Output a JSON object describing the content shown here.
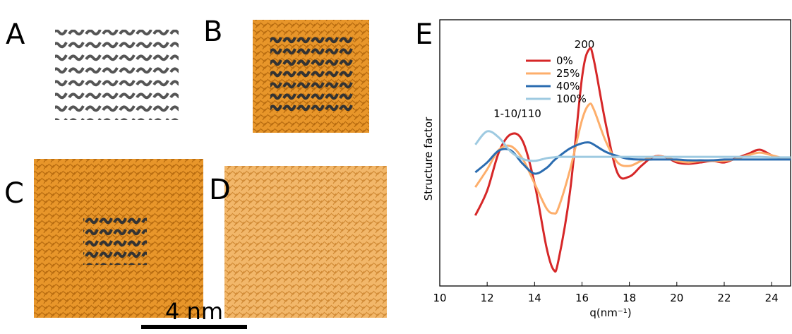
{
  "panels": {
    "labels": [
      "A",
      "B",
      "C",
      "D",
      "E"
    ],
    "scale_bar": "4 nm"
  },
  "chart_data": {
    "type": "line",
    "x_label": "q(nm⁻¹)",
    "y_label": "Structure factor",
    "annotations": [
      "200",
      "1-10/110"
    ],
    "x": [
      11.5,
      12,
      12.5,
      13,
      13.5,
      14,
      14.5,
      14.8,
      15,
      15.5,
      16,
      16.3,
      16.5,
      17,
      17.5,
      18,
      18.5,
      19,
      19.5,
      20,
      20.5,
      21,
      21.5,
      22,
      22.5,
      23,
      23.5,
      24,
      24.5,
      24.8
    ],
    "series": [
      {
        "name": "0%",
        "color": "#d62728",
        "values": [
          26.5,
          35.8,
          50.4,
          57,
          54.4,
          38.5,
          14.6,
          6.1,
          9.3,
          35.8,
          78.2,
          88.9,
          84.9,
          61,
          42.4,
          41.1,
          45.1,
          48.5,
          48.5,
          46.4,
          45.9,
          46.4,
          47,
          46.4,
          48,
          49.6,
          51.2,
          49.1,
          47.7,
          47.7
        ]
      },
      {
        "name": "25%",
        "color": "#fdae6b",
        "values": [
          37.1,
          43.8,
          51.2,
          52.5,
          47.7,
          38.5,
          29.2,
          27.3,
          29.2,
          43.8,
          62.3,
          68.2,
          66.3,
          54.4,
          46.4,
          45.1,
          47,
          48.5,
          48.5,
          47,
          46.4,
          47,
          47,
          47,
          47.7,
          49.1,
          50.1,
          49.1,
          48,
          47.7
        ]
      },
      {
        "name": "40%",
        "color": "#2b6cb0",
        "values": [
          42.7,
          46.4,
          50.9,
          50.9,
          45.9,
          42.2,
          44.3,
          47,
          48.5,
          51.7,
          53.6,
          53.9,
          53.1,
          50.4,
          48.8,
          47.7,
          47.5,
          47.5,
          47.5,
          47.5,
          47.2,
          47.2,
          47.2,
          47.5,
          47.5,
          47.5,
          47.5,
          47.5,
          47.5,
          47.5
        ]
      },
      {
        "name": "100%",
        "color": "#9ecae1",
        "values": [
          53.1,
          58.1,
          55.7,
          50.4,
          47.7,
          47,
          48,
          48.3,
          48.5,
          48.5,
          48.5,
          48.5,
          48.5,
          48.5,
          48.5,
          48.5,
          48.5,
          48.5,
          48.5,
          48.5,
          48.5,
          48.5,
          48.5,
          48.5,
          48.5,
          48.5,
          48.5,
          48.3,
          48.3,
          48.3
        ]
      }
    ],
    "xlim": [
      10,
      24.8
    ],
    "ylim": [
      0,
      100
    ],
    "xticks": [
      10,
      12,
      14,
      16,
      18,
      20,
      22,
      24
    ],
    "legend": "upper right"
  }
}
